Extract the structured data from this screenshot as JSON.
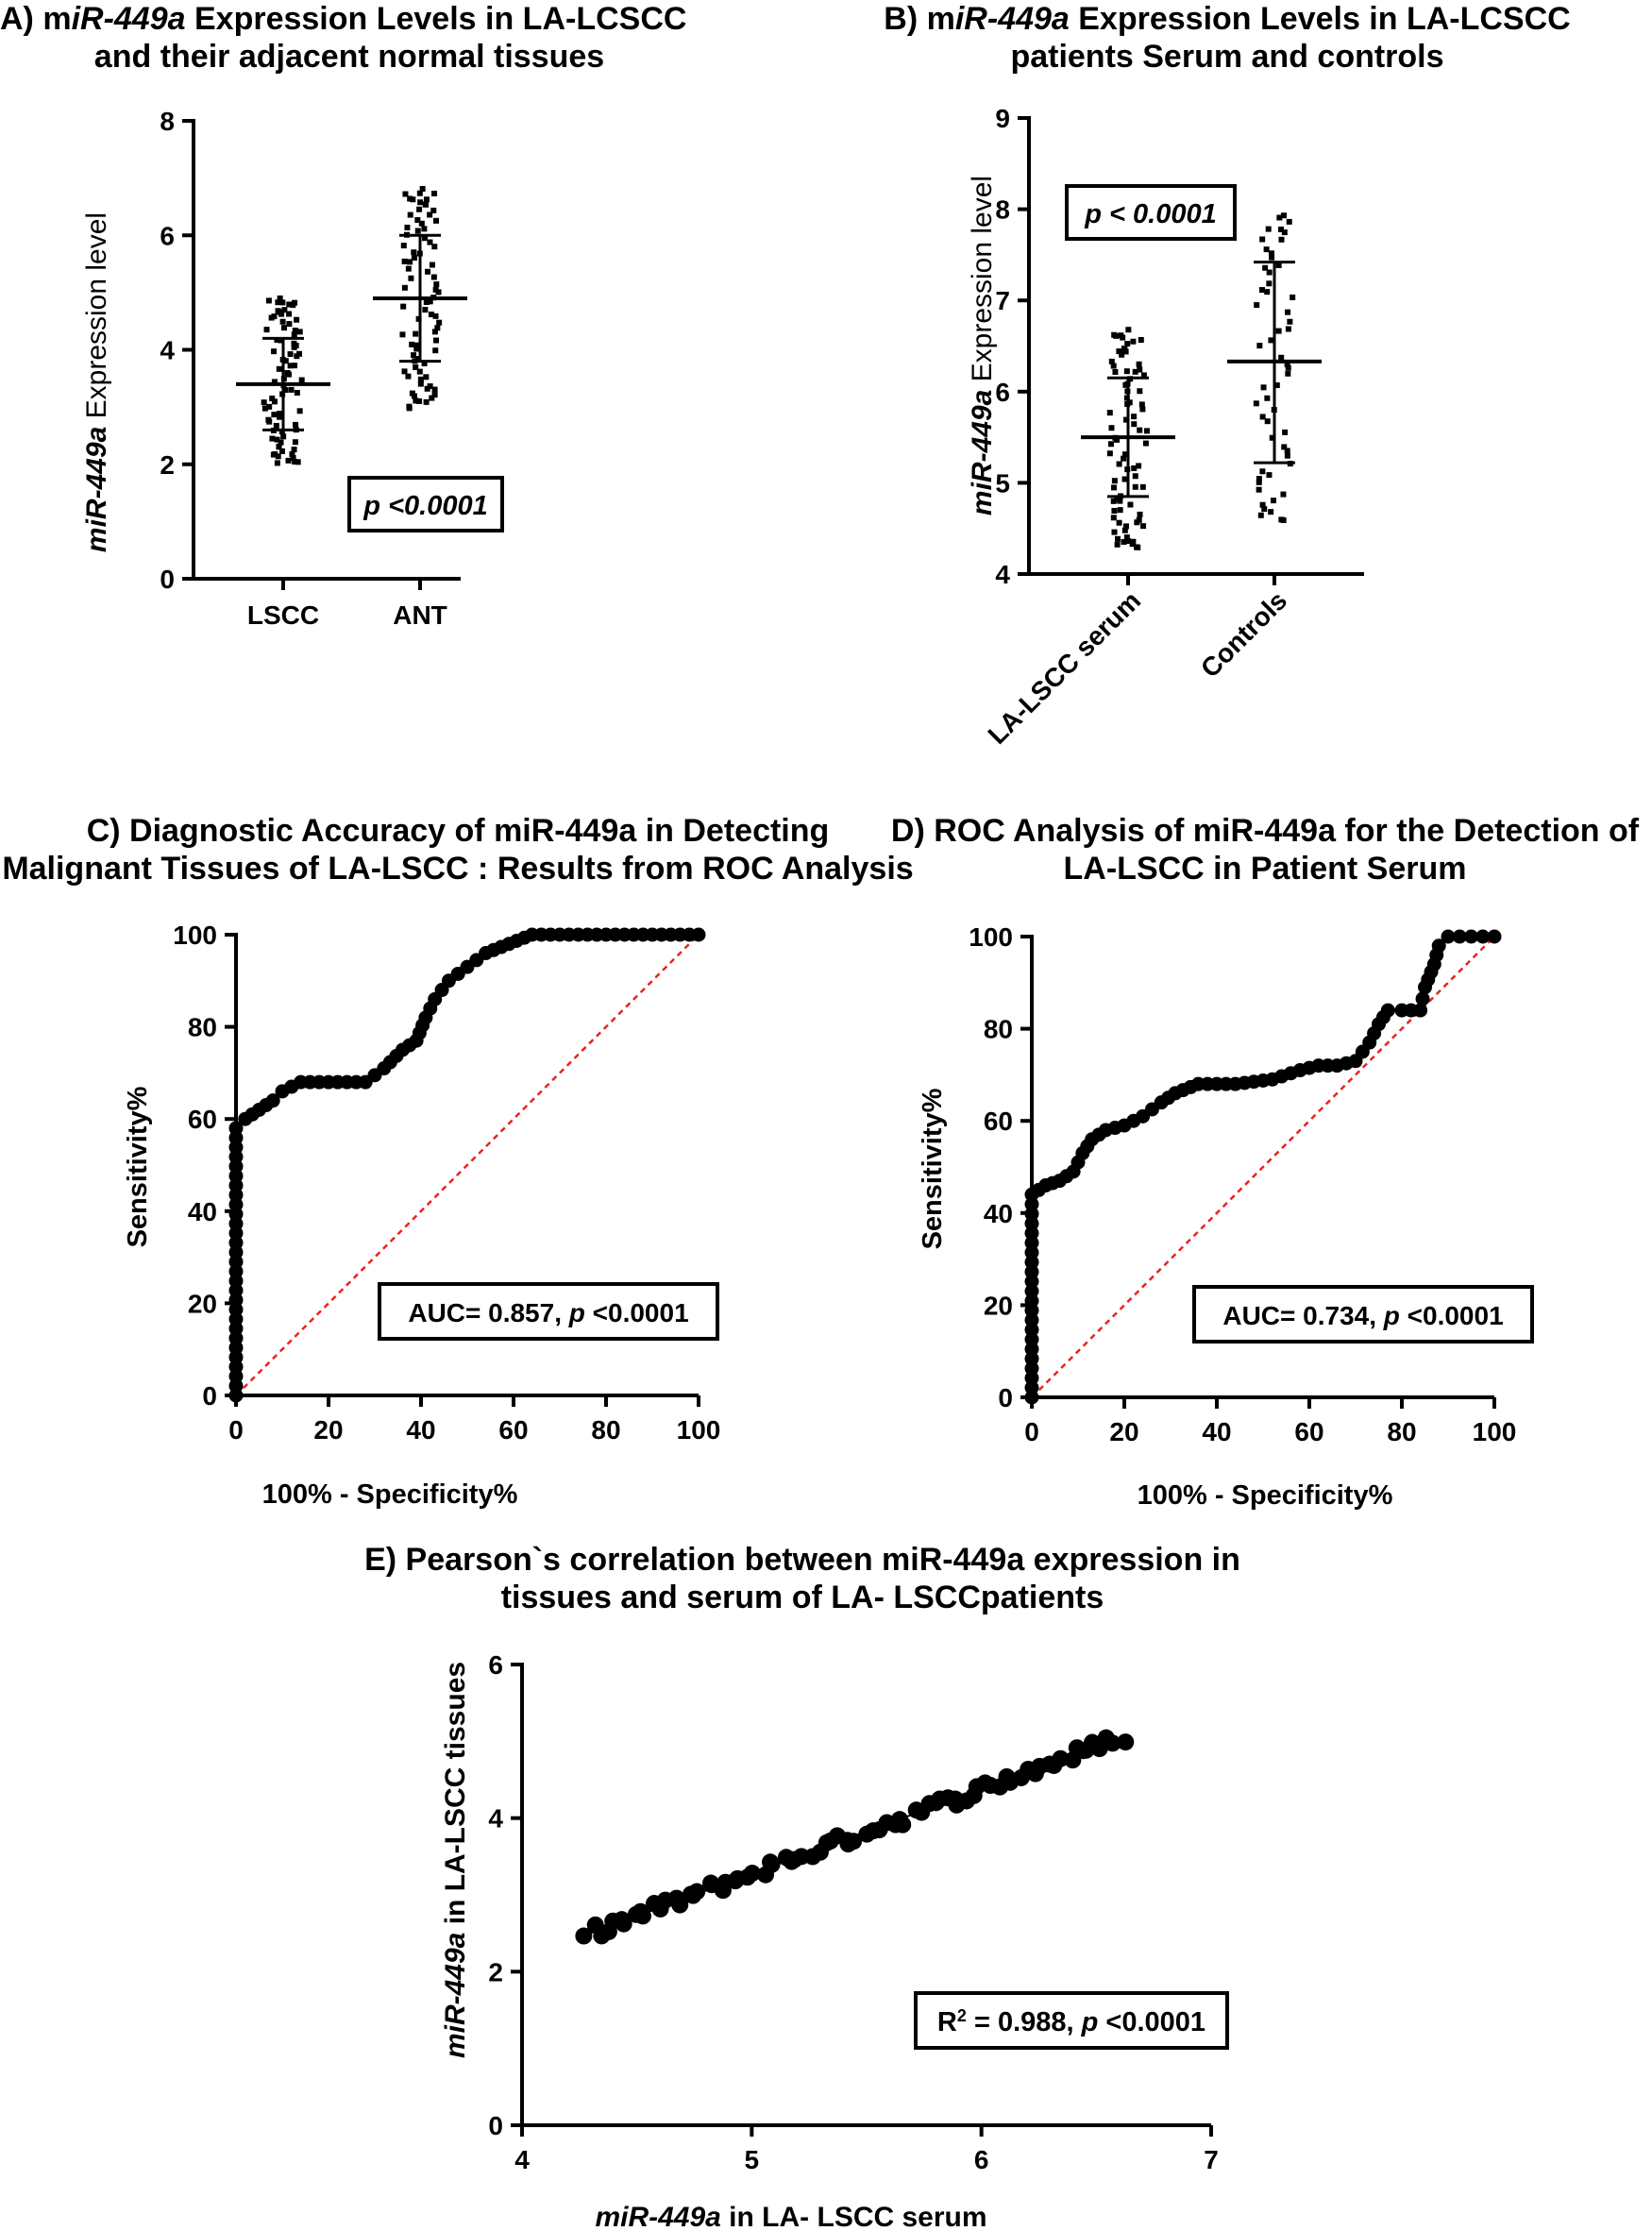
{
  "panels": {
    "A": {
      "title_line1_prefix": "A) m",
      "title_line1_em": "iR-449a",
      "title_line1_suffix": " Expression Levels in LA-LCSCC",
      "title_line2": "and their adjacent normal tissues",
      "p_label": "p <0.0001"
    },
    "B": {
      "title_line1_prefix": "B) m",
      "title_line1_em": "iR-449a",
      "title_line1_suffix": " Expression Levels in LA-LCSCC",
      "title_line2": "patients Serum and controls",
      "p_label": "p < 0.0001"
    },
    "C": {
      "title_line1": "C) Diagnostic Accuracy of miR-449a in Detecting",
      "title_line2": "Malignant Tissues of LA-LSCC : Results from ROC Analysis",
      "auc_prefix": "AUC= 0.857, ",
      "auc_p": "p",
      "auc_suffix": " <0.0001"
    },
    "D": {
      "title_line1": "D) ROC Analysis of miR-449a for the Detection of",
      "title_line2": "LA-LSCC in Patient Serum",
      "auc_prefix": "AUC= 0.734, ",
      "auc_p": "p",
      "auc_suffix": " <0.0001"
    },
    "E": {
      "title_line1": "E) Pearson`s correlation between miR-449a expression in",
      "title_line2": "tissues and serum of LA- LSCCpatients",
      "r2_prefix": "R",
      "r2_sup": "2",
      "r2_suffix": " = 0.988, ",
      "r2_p": "p",
      "r2_psuffix": " <0.0001"
    }
  },
  "colors": {
    "dots": "#000000",
    "reference_line": "#e8241c"
  },
  "chart_data": [
    {
      "id": "A",
      "type": "scatter",
      "ylabel_em": "miR-449a",
      "ylabel_rest": " Expression level",
      "ylim": [
        0,
        8
      ],
      "yticks": [
        0,
        2,
        4,
        6,
        8
      ],
      "categories": [
        "LSCC",
        "ANT"
      ],
      "summary": [
        {
          "category": "LSCC",
          "mean": 3.4,
          "sd_low": 2.6,
          "sd_high": 4.2,
          "min": 2.0,
          "max": 4.9,
          "n": 80
        },
        {
          "category": "ANT",
          "mean": 4.9,
          "sd_low": 3.8,
          "sd_high": 6.0,
          "min": 3.0,
          "max": 6.8,
          "n": 80
        }
      ]
    },
    {
      "id": "B",
      "type": "scatter",
      "ylabel_em": "miR-449a",
      "ylabel_rest": " Expression level",
      "ylim": [
        4,
        9
      ],
      "yticks": [
        4,
        5,
        6,
        7,
        8,
        9
      ],
      "categories": [
        "LA-LSCC serum",
        "Controls"
      ],
      "summary": [
        {
          "category": "LA-LSCC serum",
          "mean": 5.5,
          "sd_low": 4.85,
          "sd_high": 6.15,
          "min": 4.25,
          "max": 6.65,
          "n": 80
        },
        {
          "category": "Controls",
          "mean": 6.33,
          "sd_low": 5.22,
          "sd_high": 7.42,
          "min": 4.55,
          "max": 7.95,
          "n": 55
        }
      ]
    },
    {
      "id": "C",
      "type": "line",
      "xlabel": "100% - Specificity%",
      "ylabel": "Sensitivity%",
      "xlim": [
        0,
        100
      ],
      "ylim": [
        0,
        100
      ],
      "xticks": [
        0,
        20,
        40,
        60,
        80,
        100
      ],
      "yticks": [
        0,
        20,
        40,
        60,
        80,
        100
      ],
      "roc": [
        [
          0,
          0
        ],
        [
          0,
          58
        ],
        [
          2,
          60
        ],
        [
          5,
          62
        ],
        [
          8,
          64
        ],
        [
          10,
          66
        ],
        [
          14,
          68
        ],
        [
          20,
          68
        ],
        [
          28,
          68
        ],
        [
          32,
          71
        ],
        [
          36,
          75
        ],
        [
          39,
          77
        ],
        [
          41,
          82
        ],
        [
          43,
          86
        ],
        [
          46,
          90
        ],
        [
          50,
          93
        ],
        [
          54,
          96
        ],
        [
          59,
          98
        ],
        [
          64,
          100
        ],
        [
          70,
          100
        ],
        [
          80,
          100
        ],
        [
          90,
          100
        ],
        [
          100,
          100
        ]
      ],
      "reference": [
        [
          0,
          0
        ],
        [
          100,
          100
        ]
      ]
    },
    {
      "id": "D",
      "type": "line",
      "xlabel": "100% - Specificity%",
      "ylabel": "Sensitivity%",
      "xlim": [
        0,
        100
      ],
      "ylim": [
        0,
        100
      ],
      "xticks": [
        0,
        20,
        40,
        60,
        80,
        100
      ],
      "yticks": [
        0,
        20,
        40,
        60,
        80,
        100
      ],
      "roc": [
        [
          0,
          0
        ],
        [
          0,
          44
        ],
        [
          3,
          46
        ],
        [
          6,
          47
        ],
        [
          9,
          49
        ],
        [
          11,
          53
        ],
        [
          13,
          56
        ],
        [
          16,
          58
        ],
        [
          20,
          59
        ],
        [
          24,
          61
        ],
        [
          28,
          64
        ],
        [
          31,
          66
        ],
        [
          36,
          68
        ],
        [
          44,
          68
        ],
        [
          52,
          69
        ],
        [
          58,
          71
        ],
        [
          62,
          72
        ],
        [
          66,
          72
        ],
        [
          70,
          73
        ],
        [
          73,
          77
        ],
        [
          75,
          81
        ],
        [
          77,
          84
        ],
        [
          80,
          84
        ],
        [
          84,
          84
        ],
        [
          85,
          89
        ],
        [
          87,
          94
        ],
        [
          88,
          98
        ],
        [
          90,
          100
        ],
        [
          95,
          100
        ],
        [
          100,
          100
        ]
      ],
      "reference": [
        [
          0,
          0
        ],
        [
          100,
          100
        ]
      ]
    },
    {
      "id": "E",
      "type": "scatter",
      "xlabel_em": "miR-449a",
      "xlabel_rest": " in LA- LSCC serum",
      "ylabel_em": "miR-449a",
      "ylabel_rest": " in LA-LSCC tissues",
      "xlim": [
        4,
        7
      ],
      "ylim": [
        0,
        6
      ],
      "xticks": [
        4,
        5,
        6,
        7
      ],
      "yticks": [
        0,
        2,
        4,
        6
      ],
      "fit": {
        "slope": 1.103,
        "intercept": -2.24
      },
      "x_range": [
        4.27,
        6.62
      ]
    }
  ]
}
